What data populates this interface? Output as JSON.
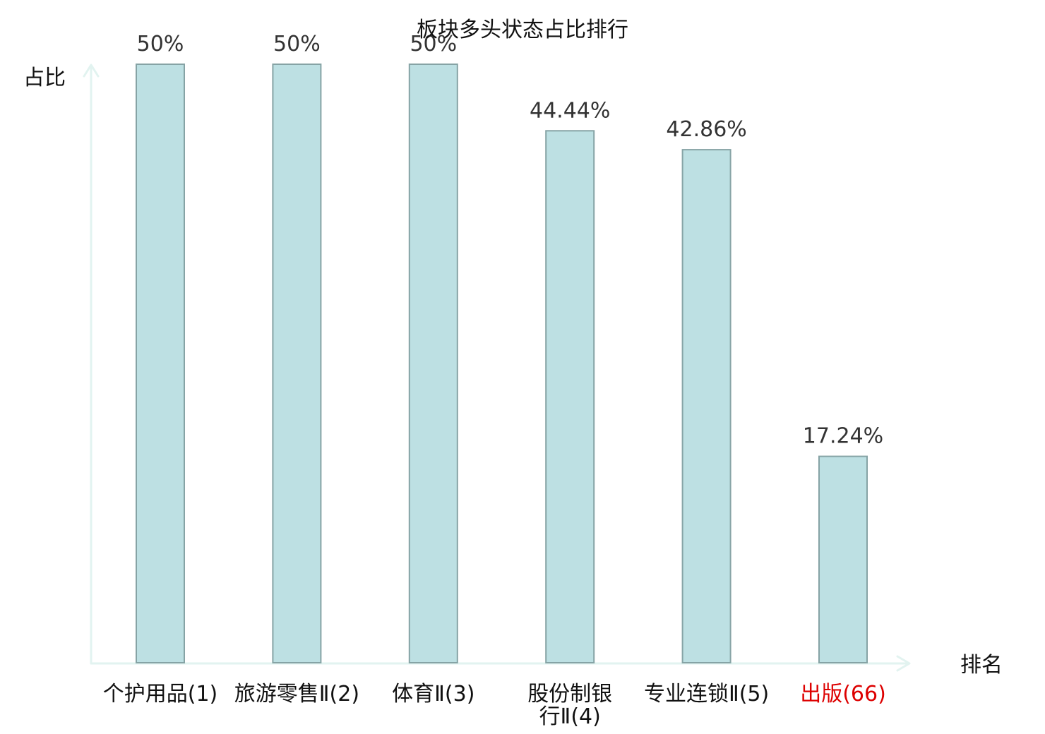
{
  "chart_data": {
    "type": "bar",
    "title": "板块多头状态占比排行",
    "xlabel": "排名",
    "ylabel": "占比",
    "categories": [
      {
        "lines": [
          "个护用品",
          "(1)"
        ],
        "highlight": false
      },
      {
        "lines": [
          "旅游零售",
          "Ⅱ(2)"
        ],
        "highlight": false
      },
      {
        "lines": [
          "体育Ⅱ",
          "(3)"
        ],
        "highlight": false
      },
      {
        "lines": [
          "股份制银",
          "行Ⅱ(4)"
        ],
        "highlight": false
      },
      {
        "lines": [
          "专业连锁",
          "Ⅱ(5)"
        ],
        "highlight": false
      },
      {
        "lines": [
          "出版",
          "(66)"
        ],
        "highlight": true
      }
    ],
    "values": [
      50,
      50,
      50,
      44.44,
      42.86,
      17.24
    ],
    "value_labels": [
      "50%",
      "50%",
      "50%",
      "44.44%",
      "42.86%",
      "17.24%"
    ],
    "ylim": [
      0,
      50
    ],
    "grid": false,
    "legend": "none",
    "colors": {
      "bar_fill": "#bde0e3",
      "bar_stroke": "#86a3a5",
      "axis": "#e2f3f0",
      "tick_text": "#111111",
      "highlight_text": "#dd0000"
    }
  }
}
